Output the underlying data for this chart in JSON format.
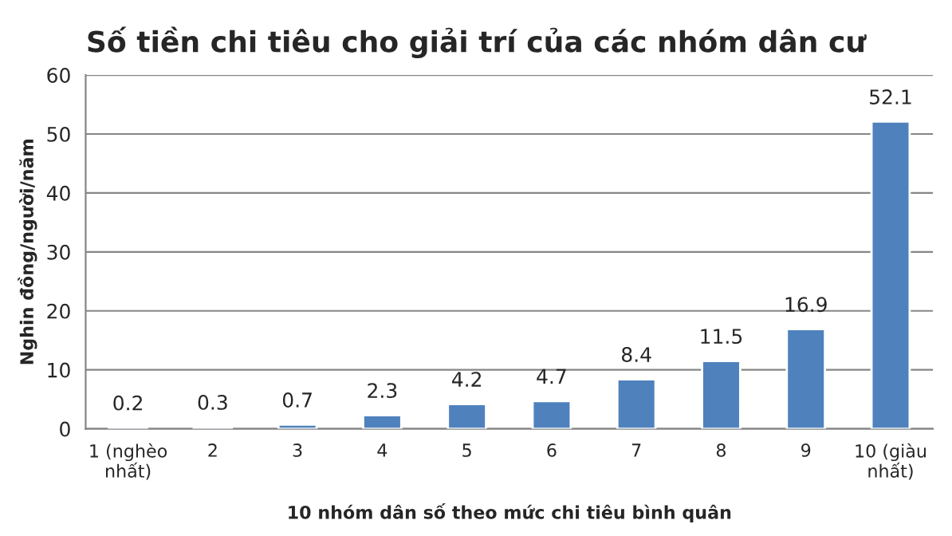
{
  "chart_data": {
    "type": "bar",
    "title": "Số tiền chi tiêu cho giải trí của các nhóm dân cư",
    "xlabel": "10 nhóm dân số theo mức chi tiêu bình quân",
    "ylabel": "Nghin đồng/người/năm",
    "categories": [
      "1 (nghèo\nnhất)",
      "2",
      "3",
      "4",
      "5",
      "6",
      "7",
      "8",
      "9",
      "10 (giàu\nnhất)"
    ],
    "values": [
      0.2,
      0.3,
      0.7,
      2.3,
      4.2,
      4.7,
      8.4,
      11.5,
      16.9,
      52.1
    ],
    "color": "#4f81bd",
    "ylim": [
      0,
      60
    ],
    "yticks": [
      0,
      10,
      20,
      30,
      40,
      50,
      60
    ],
    "grid": "y",
    "data_labels": true
  }
}
